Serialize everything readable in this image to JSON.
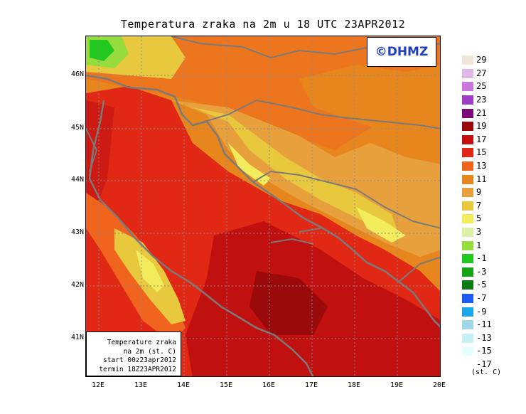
{
  "title": "Temperatura zraka na 2m u 18 UTC 23APR2012",
  "logo": "©DHMZ",
  "info": {
    "line1": "Temperature zraka",
    "line2": "na 2m (st. C)",
    "line3": "start 00z23apr2012",
    "line4": "termin 18Z23APR2012"
  },
  "lat_labels": [
    "46N",
    "45N",
    "44N",
    "43N",
    "42N",
    "41N"
  ],
  "lon_labels": [
    "12E",
    "13E",
    "14E",
    "15E",
    "16E",
    "17E",
    "18E",
    "19E",
    "20E"
  ],
  "legend": {
    "unit": "(st. C)",
    "colors": [
      "#e6ffff",
      "#c6f0f4",
      "#9ed8e8",
      "#18a8e8",
      "#1c5cf4",
      "#0a7a14",
      "#14a414",
      "#20c820",
      "#96dc3c",
      "#dcf0a8",
      "#f2ec5c",
      "#e8c83c",
      "#e8a03c",
      "#e8861e",
      "#f0641e",
      "#e02814",
      "#c01010",
      "#9a0a0a",
      "#7a0a7a",
      "#a03cc8",
      "#c878dc",
      "#deb8e6",
      "#f2e6d8"
    ],
    "labels": [
      "-17",
      "-15",
      "-13",
      "-11",
      "-9",
      "-7",
      "-5",
      "-3",
      "-1",
      "1",
      "3",
      "5",
      "7",
      "9",
      "11",
      "13",
      "15",
      "17",
      "19",
      "21",
      "23",
      "25",
      "27",
      "29"
    ]
  },
  "colors": {
    "land_warm": "#e8861e",
    "sea": "#e02814",
    "sea_warm": "#c01010",
    "cool_highland": "#e8c83c",
    "alpine": "#20c820",
    "coastline": "#7a7a7a",
    "logo_text": "#1f3fbf"
  }
}
